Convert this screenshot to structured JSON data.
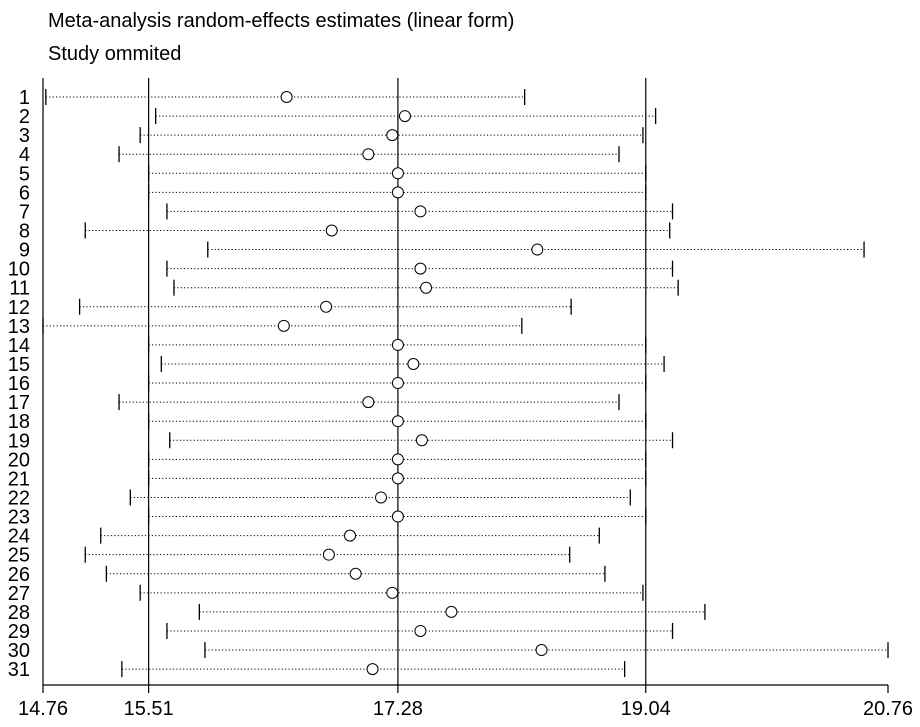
{
  "chart_data": {
    "type": "forest",
    "title": "Meta-analysis random-effects estimates (linear form)",
    "subtitle": "Study ommited",
    "x_ticks": [
      14.76,
      15.51,
      17.28,
      19.04,
      20.76
    ],
    "x_tick_labels": [
      "14.76",
      "15.51",
      "17.28",
      "19.04",
      "20.76"
    ],
    "xlim": [
      14.76,
      20.76
    ],
    "reference_lines": [
      15.51,
      17.28,
      19.04
    ],
    "studies": [
      {
        "label": "1",
        "estimate": 16.49,
        "lower": 14.78,
        "upper": 18.18
      },
      {
        "label": "2",
        "estimate": 17.33,
        "lower": 15.56,
        "upper": 19.11
      },
      {
        "label": "3",
        "estimate": 17.24,
        "lower": 15.45,
        "upper": 19.02
      },
      {
        "label": "4",
        "estimate": 17.07,
        "lower": 15.3,
        "upper": 18.85
      },
      {
        "label": "5",
        "estimate": 17.28,
        "lower": 15.51,
        "upper": 19.04
      },
      {
        "label": "6",
        "estimate": 17.28,
        "lower": 15.51,
        "upper": 19.04
      },
      {
        "label": "7",
        "estimate": 17.44,
        "lower": 15.64,
        "upper": 19.23
      },
      {
        "label": "8",
        "estimate": 16.81,
        "lower": 15.06,
        "upper": 19.21
      },
      {
        "label": "9",
        "estimate": 18.27,
        "lower": 15.93,
        "upper": 20.59
      },
      {
        "label": "10",
        "estimate": 17.44,
        "lower": 15.64,
        "upper": 19.23
      },
      {
        "label": "11",
        "estimate": 17.48,
        "lower": 15.69,
        "upper": 19.27
      },
      {
        "label": "12",
        "estimate": 16.77,
        "lower": 15.02,
        "upper": 18.51
      },
      {
        "label": "13",
        "estimate": 16.47,
        "lower": 14.76,
        "upper": 18.16
      },
      {
        "label": "14",
        "estimate": 17.28,
        "lower": 15.51,
        "upper": 19.04
      },
      {
        "label": "15",
        "estimate": 17.39,
        "lower": 15.6,
        "upper": 19.17
      },
      {
        "label": "16",
        "estimate": 17.28,
        "lower": 15.51,
        "upper": 19.04
      },
      {
        "label": "17",
        "estimate": 17.07,
        "lower": 15.3,
        "upper": 18.85
      },
      {
        "label": "18",
        "estimate": 17.28,
        "lower": 15.51,
        "upper": 19.04
      },
      {
        "label": "19",
        "estimate": 17.45,
        "lower": 15.66,
        "upper": 19.23
      },
      {
        "label": "20",
        "estimate": 17.28,
        "lower": 15.51,
        "upper": 19.04
      },
      {
        "label": "21",
        "estimate": 17.28,
        "lower": 15.51,
        "upper": 19.04
      },
      {
        "label": "22",
        "estimate": 17.16,
        "lower": 15.38,
        "upper": 18.93
      },
      {
        "label": "23",
        "estimate": 17.28,
        "lower": 15.51,
        "upper": 19.04
      },
      {
        "label": "24",
        "estimate": 16.94,
        "lower": 15.17,
        "upper": 18.71
      },
      {
        "label": "25",
        "estimate": 16.79,
        "lower": 15.06,
        "upper": 18.5
      },
      {
        "label": "26",
        "estimate": 16.98,
        "lower": 15.21,
        "upper": 18.75
      },
      {
        "label": "27",
        "estimate": 17.24,
        "lower": 15.45,
        "upper": 19.02
      },
      {
        "label": "28",
        "estimate": 17.66,
        "lower": 15.87,
        "upper": 19.46
      },
      {
        "label": "29",
        "estimate": 17.44,
        "lower": 15.64,
        "upper": 19.23
      },
      {
        "label": "30",
        "estimate": 18.3,
        "lower": 15.91,
        "upper": 20.76
      },
      {
        "label": "31",
        "estimate": 17.1,
        "lower": 15.32,
        "upper": 18.89
      }
    ]
  }
}
